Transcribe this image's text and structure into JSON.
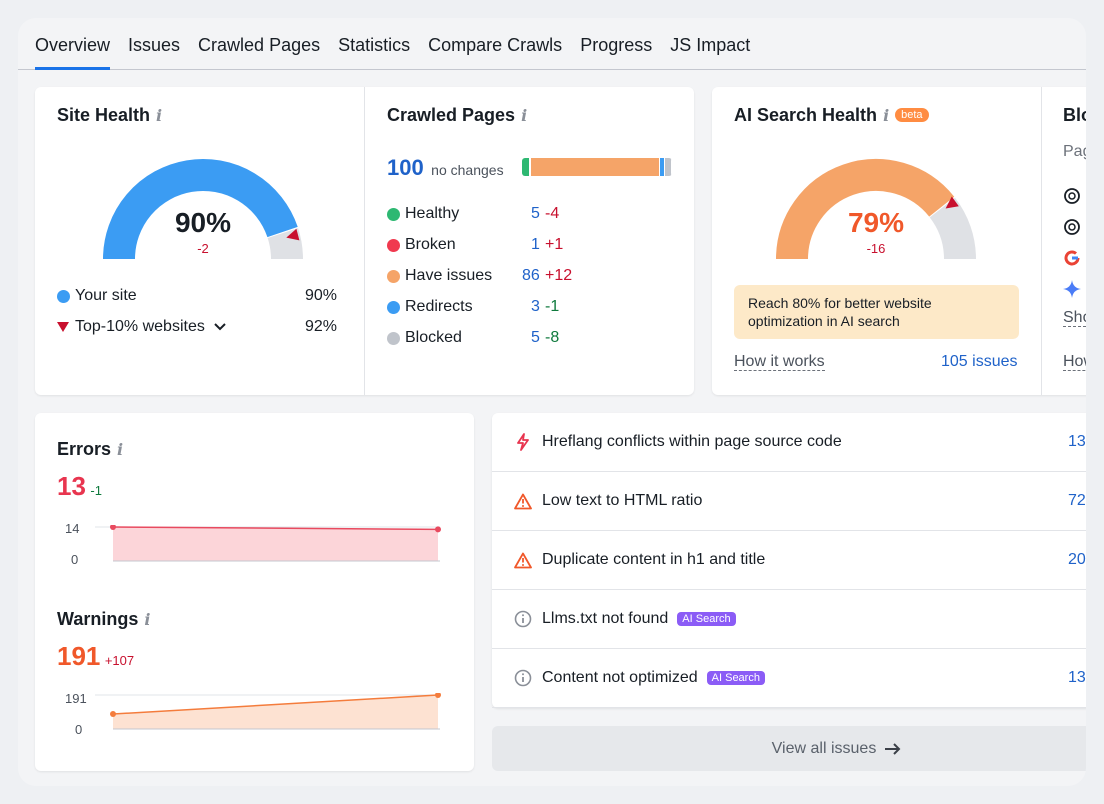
{
  "tabs": [
    "Overview",
    "Issues",
    "Crawled Pages",
    "Statistics",
    "Compare Crawls",
    "Progress",
    "JS Impact"
  ],
  "site_health": {
    "title": "Site Health",
    "info": "i",
    "percent_label": "90%",
    "percent": 90,
    "top10_percent": 92,
    "change": "-2",
    "legend_site": "Your site",
    "legend_site_value": "90%",
    "legend_top": "Top-10% websites",
    "legend_top_value": "92%",
    "colors": {
      "fill": "#3b9cf3",
      "rest": "#dfe1e5",
      "marker": "#c8102e"
    }
  },
  "crawled_pages": {
    "title": "Crawled Pages",
    "info": "i",
    "total": "100",
    "total_note": "no changes",
    "rows": [
      {
        "label": "Healthy",
        "value": "5",
        "change": "-4",
        "color": "#2eb872",
        "change_class": "red"
      },
      {
        "label": "Broken",
        "value": "1",
        "change": "+1",
        "color": "#f0394f",
        "change_class": "red"
      },
      {
        "label": "Have issues",
        "value": "86",
        "change": "+12",
        "color": "#f5a468",
        "change_class": "red"
      },
      {
        "label": "Redirects",
        "value": "3",
        "change": "-1",
        "color": "#3b9cf3",
        "change_class": "green"
      },
      {
        "label": "Blocked",
        "value": "5",
        "change": "-8",
        "color": "#c0c4cb",
        "change_class": "green"
      }
    ]
  },
  "ai_health": {
    "title": "AI Search Health",
    "info": "i",
    "badge": "beta",
    "percent_label": "79%",
    "percent": 79,
    "change": "-16",
    "tip": "Reach 80% for better website optimization in AI search",
    "how_link": "How it works",
    "issues_link": "105 issues",
    "colors": {
      "fill": "#f5a468",
      "rest": "#dfe1e5",
      "marker": "#c8102e",
      "tip_bg": "#fde9c8"
    }
  },
  "partial_card": {
    "title": "Blo",
    "subtitle": "Pag",
    "show": "Sho",
    "how": "How",
    "icons": [
      "openai-icon",
      "openai-icon",
      "google-icon",
      "gemini-icon"
    ]
  },
  "errors": {
    "title": "Errors",
    "info": "i",
    "value": "13",
    "change": "-1",
    "chart_data": {
      "type": "area",
      "y_ticks": [
        "14",
        "0"
      ],
      "ylim": [
        0,
        14
      ],
      "values": [
        14,
        13
      ],
      "color": "#e84a5f"
    }
  },
  "warnings": {
    "title": "Warnings",
    "info": "i",
    "value": "191",
    "change": "+107",
    "chart_data": {
      "type": "area",
      "y_ticks": [
        "191",
        "0"
      ],
      "ylim": [
        0,
        191
      ],
      "values": [
        84,
        191
      ],
      "color": "#f47c3c"
    }
  },
  "issues": [
    {
      "icon": "error-bolt-icon",
      "text": "Hreflang conflicts within page source code",
      "badge": "",
      "count": "13"
    },
    {
      "icon": "warning-triangle-icon",
      "text": "Low text to HTML ratio",
      "badge": "",
      "count": "72"
    },
    {
      "icon": "warning-triangle-icon",
      "text": "Duplicate content in h1 and title",
      "badge": "",
      "count": "20"
    },
    {
      "icon": "info-circle-icon",
      "text": "Llms.txt not found",
      "badge": "AI Search",
      "count": ""
    },
    {
      "icon": "info-circle-icon",
      "text": "Content not optimized",
      "badge": "AI Search",
      "count": "13"
    }
  ],
  "view_all": "View all issues"
}
